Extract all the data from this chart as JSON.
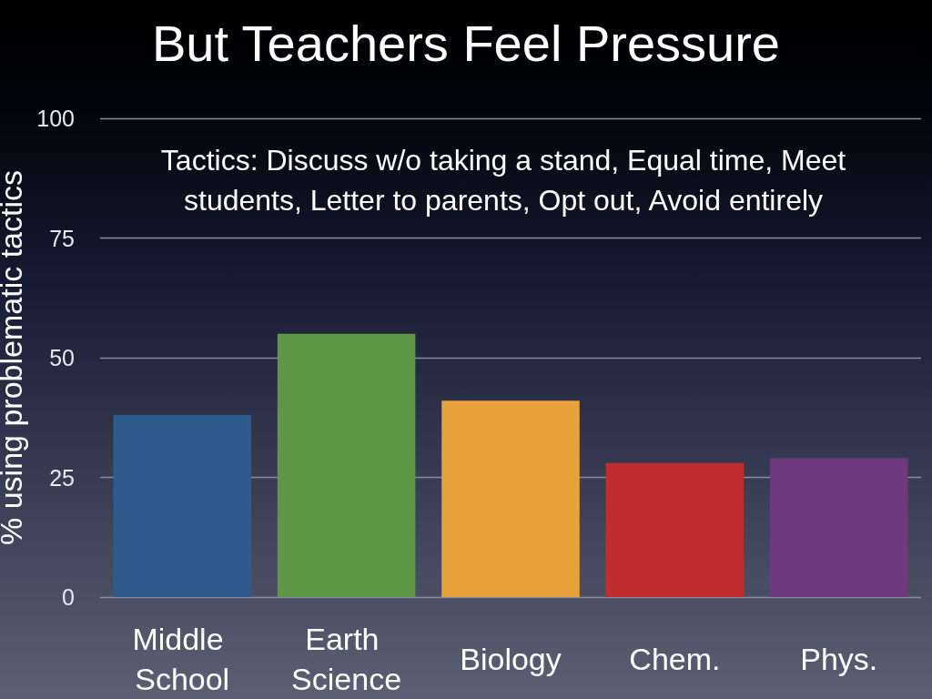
{
  "chart_data": {
    "type": "bar",
    "title": "But Teachers Feel Pressure",
    "ylabel": "% using problematic tactics",
    "annotations": [
      "Tactics: Discuss w/o taking a stand, Equal time, Meet students, Letter to parents, Opt out, Avoid entirely"
    ],
    "categories": [
      "Middle School",
      "Earth Science",
      "Biology",
      "Chem.",
      "Phys."
    ],
    "values": [
      38,
      55,
      41,
      28,
      29
    ],
    "colors": [
      "#2d5b8f",
      "#5e9847",
      "#e9a13c",
      "#c12d2e",
      "#6e3a7d"
    ],
    "ylim": [
      0,
      100
    ],
    "yticks": [
      0,
      25,
      50,
      75,
      100
    ],
    "grid": "y"
  }
}
